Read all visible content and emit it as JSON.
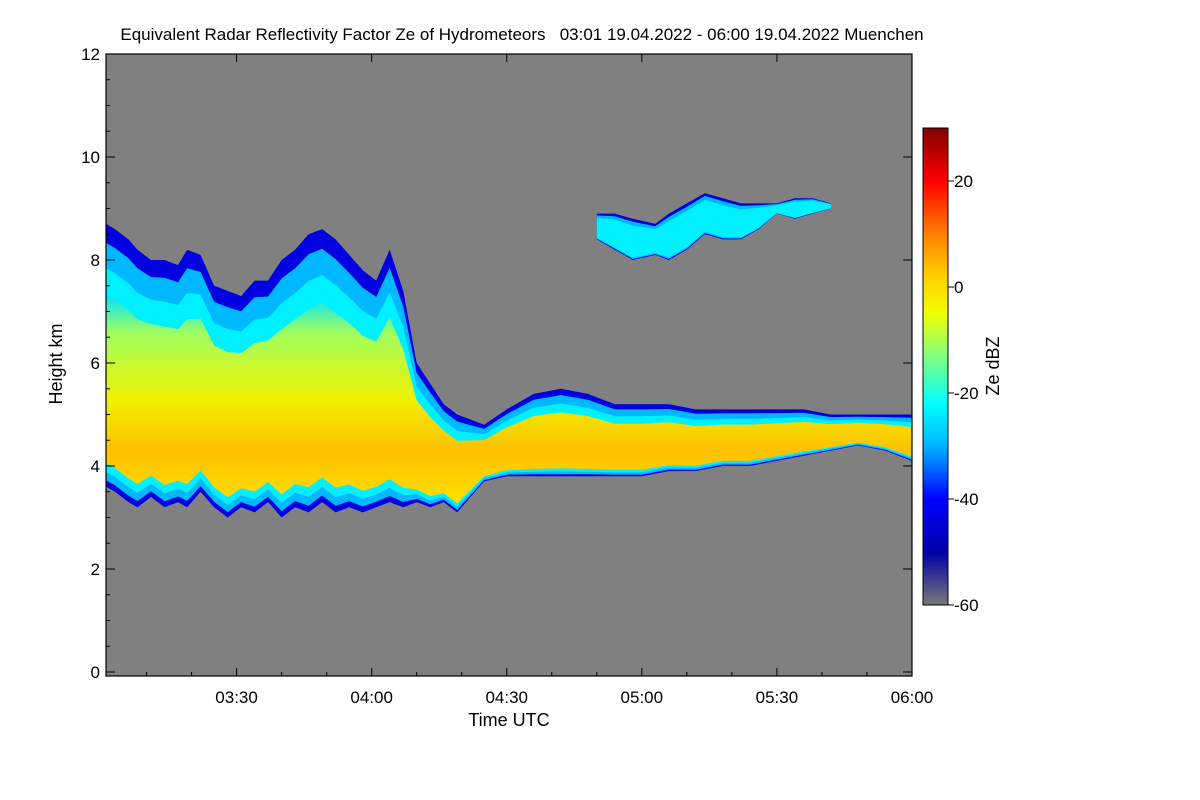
{
  "chart_data": {
    "type": "heatmap",
    "title": "Equivalent Radar Reflectivity Factor Ze of Hydrometeors   03:01 19.04.2022 - 06:00 19.04.2022 Muenchen",
    "xlabel": "Time UTC",
    "ylabel": "Height km",
    "x_range": [
      "03:01",
      "06:00"
    ],
    "x_ticks": [
      {
        "label": "03:30",
        "minute": 210
      },
      {
        "label": "04:00",
        "minute": 240
      },
      {
        "label": "04:30",
        "minute": 270
      },
      {
        "label": "05:00",
        "minute": 300
      },
      {
        "label": "05:30",
        "minute": 330
      },
      {
        "label": "06:00",
        "minute": 360
      }
    ],
    "ylim": [
      0,
      12
    ],
    "y_ticks": [
      "0",
      "2",
      "4",
      "6",
      "8",
      "10",
      "12"
    ],
    "background_color": "#808080",
    "colorbar": {
      "label": "Ze dBZ",
      "range": [
        -60,
        30
      ],
      "ticks": [
        "20",
        "0",
        "-20",
        "-40",
        "-60"
      ],
      "tick_values": [
        20,
        0,
        -20,
        -40,
        -60
      ],
      "colormap": [
        {
          "v": -60,
          "c": "#787878"
        },
        {
          "v": -50,
          "c": "#0000a8"
        },
        {
          "v": -40,
          "c": "#0000ff"
        },
        {
          "v": -30,
          "c": "#00b4ff"
        },
        {
          "v": -22,
          "c": "#00ffff"
        },
        {
          "v": -12,
          "c": "#90ff70"
        },
        {
          "v": -5,
          "c": "#f0ff00"
        },
        {
          "v": 2,
          "c": "#ffd000"
        },
        {
          "v": 10,
          "c": "#ff8000"
        },
        {
          "v": 20,
          "c": "#ff0000"
        },
        {
          "v": 30,
          "c": "#800000"
        }
      ]
    },
    "echo_layers": [
      {
        "name": "main precipitation layer",
        "points": [
          [
            181,
            8.7,
            3.6
          ],
          [
            183,
            8.6,
            3.5
          ],
          [
            186,
            8.4,
            3.3
          ],
          [
            188,
            8.2,
            3.2
          ],
          [
            191,
            8.0,
            3.4
          ],
          [
            194,
            8.0,
            3.2
          ],
          [
            197,
            7.9,
            3.3
          ],
          [
            199,
            8.2,
            3.2
          ],
          [
            202,
            8.1,
            3.5
          ],
          [
            205,
            7.5,
            3.2
          ],
          [
            208,
            7.4,
            3.0
          ],
          [
            211,
            7.3,
            3.2
          ],
          [
            214,
            7.6,
            3.1
          ],
          [
            217,
            7.6,
            3.3
          ],
          [
            220,
            8.0,
            3.0
          ],
          [
            223,
            8.2,
            3.2
          ],
          [
            226,
            8.5,
            3.1
          ],
          [
            229,
            8.6,
            3.3
          ],
          [
            232,
            8.4,
            3.1
          ],
          [
            235,
            8.1,
            3.2
          ],
          [
            238,
            7.8,
            3.1
          ],
          [
            241,
            7.6,
            3.2
          ],
          [
            244,
            8.2,
            3.3
          ],
          [
            247,
            7.4,
            3.2
          ],
          [
            250,
            6.0,
            3.3
          ],
          [
            253,
            5.6,
            3.2
          ],
          [
            256,
            5.2,
            3.3
          ],
          [
            259,
            5.0,
            3.1
          ],
          [
            262,
            4.9,
            3.4
          ],
          [
            265,
            4.8,
            3.7
          ],
          [
            270,
            5.1,
            3.8
          ],
          [
            276,
            5.4,
            3.8
          ],
          [
            282,
            5.5,
            3.8
          ],
          [
            288,
            5.4,
            3.8
          ],
          [
            294,
            5.2,
            3.8
          ],
          [
            300,
            5.2,
            3.8
          ],
          [
            306,
            5.2,
            3.9
          ],
          [
            312,
            5.1,
            3.9
          ],
          [
            318,
            5.1,
            4.0
          ],
          [
            324,
            5.1,
            4.0
          ],
          [
            330,
            5.1,
            4.1
          ],
          [
            336,
            5.1,
            4.2
          ],
          [
            342,
            5.0,
            4.3
          ],
          [
            348,
            5.0,
            4.4
          ],
          [
            354,
            5.0,
            4.3
          ],
          [
            360,
            5.0,
            4.1
          ]
        ]
      },
      {
        "name": "upper cirrus patches",
        "points": [
          [
            290,
            8.9,
            8.4
          ],
          [
            294,
            8.9,
            8.2
          ],
          [
            298,
            8.8,
            8.0
          ],
          [
            303,
            8.7,
            8.1
          ],
          [
            306,
            8.9,
            8.0
          ],
          [
            310,
            9.1,
            8.2
          ],
          [
            314,
            9.3,
            8.5
          ],
          [
            318,
            9.2,
            8.4
          ],
          [
            322,
            9.1,
            8.4
          ],
          [
            326,
            9.1,
            8.6
          ],
          [
            330,
            9.1,
            8.9
          ],
          [
            334,
            9.2,
            8.8
          ],
          [
            338,
            9.2,
            8.9
          ],
          [
            342,
            9.1,
            9.0
          ]
        ]
      }
    ]
  }
}
